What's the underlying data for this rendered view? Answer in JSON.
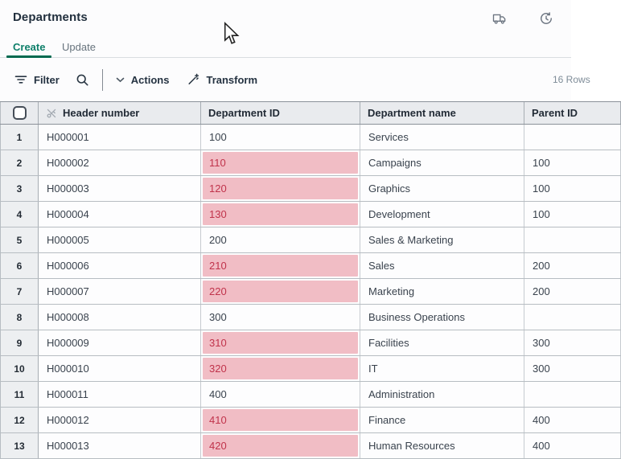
{
  "window": {
    "title": "Departments"
  },
  "topbar": {
    "icons": [
      "truck-icon",
      "history-icon"
    ]
  },
  "tabs": [
    {
      "label": "Create",
      "active": true
    },
    {
      "label": "Update",
      "active": false
    }
  ],
  "toolbar": {
    "filter_label": "Filter",
    "actions_label": "Actions",
    "transform_label": "Transform",
    "row_count": "16 Rows"
  },
  "table": {
    "columns": [
      "",
      "Header number",
      "Department ID",
      "Department name",
      "Parent ID"
    ],
    "rows": [
      {
        "num": "1",
        "header_number": "H000001",
        "department_id": "100",
        "id_flagged": false,
        "department_name": "Services",
        "parent_id": ""
      },
      {
        "num": "2",
        "header_number": "H000002",
        "department_id": "110",
        "id_flagged": true,
        "department_name": "Campaigns",
        "parent_id": "100"
      },
      {
        "num": "3",
        "header_number": "H000003",
        "department_id": "120",
        "id_flagged": true,
        "department_name": "Graphics",
        "parent_id": "100"
      },
      {
        "num": "4",
        "header_number": "H000004",
        "department_id": "130",
        "id_flagged": true,
        "department_name": "Development",
        "parent_id": "100"
      },
      {
        "num": "5",
        "header_number": "H000005",
        "department_id": "200",
        "id_flagged": false,
        "department_name": "Sales & Marketing",
        "parent_id": ""
      },
      {
        "num": "6",
        "header_number": "H000006",
        "department_id": "210",
        "id_flagged": true,
        "department_name": "Sales",
        "parent_id": "200"
      },
      {
        "num": "7",
        "header_number": "H000007",
        "department_id": "220",
        "id_flagged": true,
        "department_name": "Marketing",
        "parent_id": "200"
      },
      {
        "num": "8",
        "header_number": "H000008",
        "department_id": "300",
        "id_flagged": false,
        "department_name": "Business Operations",
        "parent_id": ""
      },
      {
        "num": "9",
        "header_number": "H000009",
        "department_id": "310",
        "id_flagged": true,
        "department_name": "Facilities",
        "parent_id": "300"
      },
      {
        "num": "10",
        "header_number": "H000010",
        "department_id": "320",
        "id_flagged": true,
        "department_name": "IT",
        "parent_id": "300"
      },
      {
        "num": "11",
        "header_number": "H000011",
        "department_id": "400",
        "id_flagged": false,
        "department_name": "Administration",
        "parent_id": ""
      },
      {
        "num": "12",
        "header_number": "H000012",
        "department_id": "410",
        "id_flagged": true,
        "department_name": "Finance",
        "parent_id": "400"
      },
      {
        "num": "13",
        "header_number": "H000013",
        "department_id": "420",
        "id_flagged": true,
        "department_name": "Human Resources",
        "parent_id": "400"
      }
    ]
  },
  "colors": {
    "accent_teal": "#0e7f6a",
    "tab_underline": "#00694f",
    "flag_bg": "#f1bdc5",
    "flag_text": "#c0334b",
    "header_bg": "#e9ebee",
    "row_number_bg": "#edeff1"
  }
}
